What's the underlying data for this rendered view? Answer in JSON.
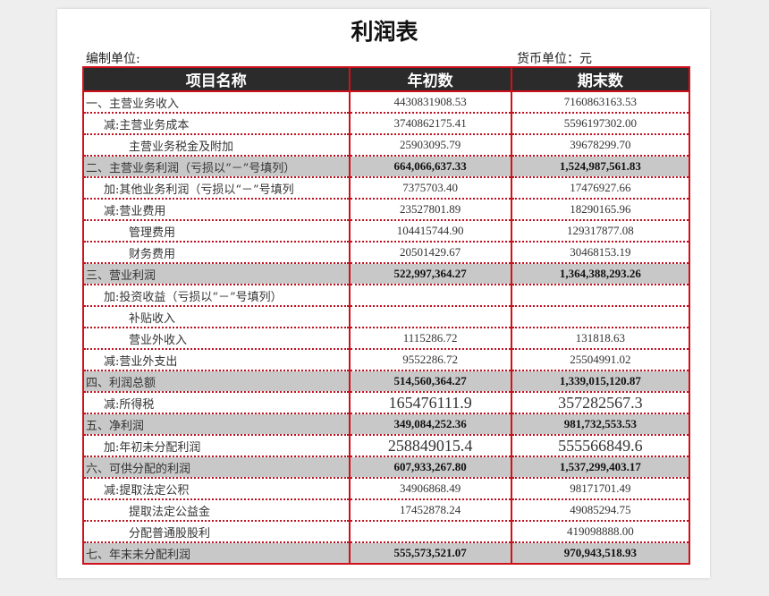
{
  "title": "利润表",
  "unit_left": "编制单位:",
  "unit_right": "货币单位：元",
  "headers": [
    "项目名称",
    "年初数",
    "期末数"
  ],
  "rows": [
    {
      "name": "一、主营业务收入",
      "begin": "4430831908.53",
      "end": "7160863163.53",
      "level": 0,
      "subtotal": false
    },
    {
      "name": "减:主营业务成本",
      "begin": "3740862175.41",
      "end": "5596197302.00",
      "level": 1,
      "subtotal": false
    },
    {
      "name": "主营业务税金及附加",
      "begin": "25903095.79",
      "end": "39678299.70",
      "level": 2,
      "subtotal": false
    },
    {
      "name": "二、主营业务利润（亏损以“－”号填列）",
      "begin": "664,066,637.33",
      "end": "1,524,987,561.83",
      "level": 0,
      "subtotal": true
    },
    {
      "name": "加:其他业务利润（亏损以“－”号填列",
      "begin": "7375703.40",
      "end": "17476927.66",
      "level": 1,
      "subtotal": false
    },
    {
      "name": "减:营业费用",
      "begin": "23527801.89",
      "end": "18290165.96",
      "level": 1,
      "subtotal": false
    },
    {
      "name": "管理费用",
      "begin": "104415744.90",
      "end": "129317877.08",
      "level": 2,
      "subtotal": false
    },
    {
      "name": "财务费用",
      "begin": "20501429.67",
      "end": "30468153.19",
      "level": 2,
      "subtotal": false
    },
    {
      "name": "三、营业利润",
      "begin": "522,997,364.27",
      "end": "1,364,388,293.26",
      "level": 0,
      "subtotal": true
    },
    {
      "name": "加:投资收益（亏损以“－”号填列）",
      "begin": "",
      "end": "",
      "level": 1,
      "subtotal": false
    },
    {
      "name": "补贴收入",
      "begin": "",
      "end": "",
      "level": 2,
      "subtotal": false
    },
    {
      "name": "营业外收入",
      "begin": "1115286.72",
      "end": "131818.63",
      "level": 2,
      "subtotal": false
    },
    {
      "name": "减:营业外支出",
      "begin": "9552286.72",
      "end": "25504991.02",
      "level": 1,
      "subtotal": false
    },
    {
      "name": "四、利润总额",
      "begin": "514,560,364.27",
      "end": "1,339,015,120.87",
      "level": 0,
      "subtotal": true
    },
    {
      "name": "减:所得税",
      "begin": "165476111.9",
      "end": "357282567.3",
      "level": 1,
      "subtotal": false,
      "big": true
    },
    {
      "name": "五、净利润",
      "begin": "349,084,252.36",
      "end": "981,732,553.53",
      "level": 0,
      "subtotal": true
    },
    {
      "name": "加:年初未分配利润",
      "begin": "258849015.4",
      "end": "555566849.6",
      "level": 1,
      "subtotal": false,
      "big": true
    },
    {
      "name": "六、可供分配的利润",
      "begin": "607,933,267.80",
      "end": "1,537,299,403.17",
      "level": 0,
      "subtotal": true
    },
    {
      "name": "减:提取法定公积",
      "begin": "34906868.49",
      "end": "98171701.49",
      "level": 1,
      "subtotal": false
    },
    {
      "name": "提取法定公益金",
      "begin": "17452878.24",
      "end": "49085294.75",
      "level": 2,
      "subtotal": false
    },
    {
      "name": "分配普通股股利",
      "begin": "",
      "end": "419098888.00",
      "level": 2,
      "subtotal": false
    },
    {
      "name": "七、年末未分配利润",
      "begin": "555,573,521.07",
      "end": "970,943,518.93",
      "level": 0,
      "subtotal": true
    }
  ],
  "colors": {
    "border": "#d0101a",
    "header_bg": "#2b2b2b",
    "subtotal_bg": "#c8c8c8"
  }
}
